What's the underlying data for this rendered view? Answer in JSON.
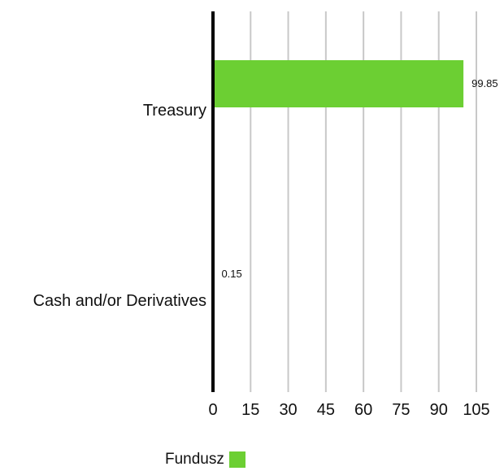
{
  "chart_data": {
    "type": "bar",
    "orientation": "horizontal",
    "categories": [
      "Treasury",
      "Cash and/or Derivatives"
    ],
    "series": [
      {
        "name": "Fundusz",
        "values": [
          99.85,
          0.15
        ],
        "color": "#6ccf33"
      }
    ],
    "data_labels": [
      "99.85",
      "0.15"
    ],
    "xlim": [
      0,
      105
    ],
    "xticks": [
      0,
      15,
      30,
      45,
      60,
      75,
      90,
      105
    ],
    "grid": "vertical",
    "legend_position": "bottom"
  }
}
